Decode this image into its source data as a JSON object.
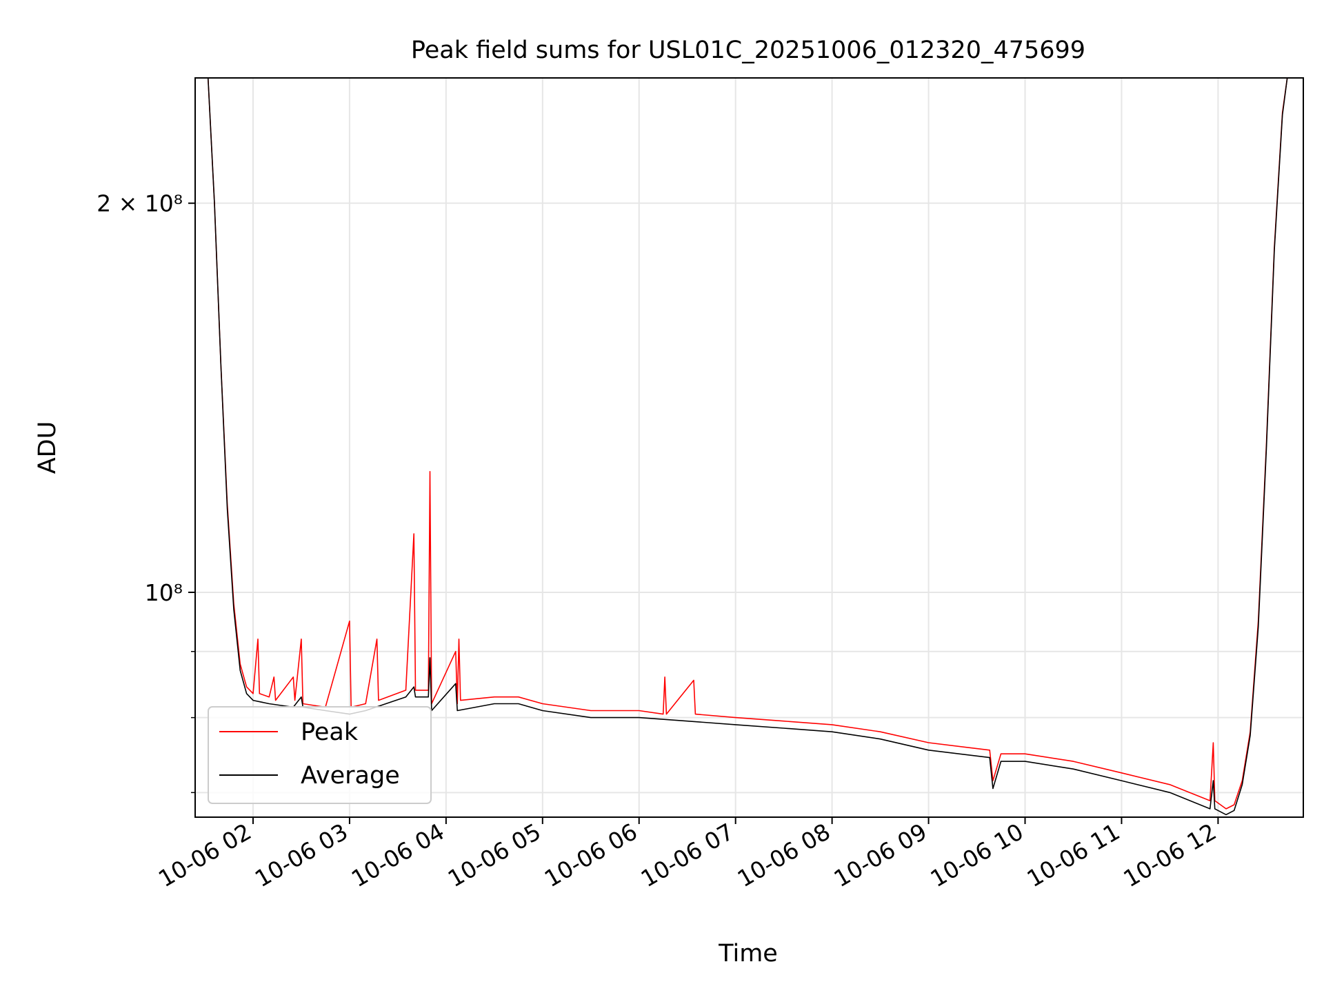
{
  "chart_data": {
    "type": "line",
    "title": "Peak field sums for USL01C_20251006_012320_475699",
    "xlabel": "Time",
    "ylabel": "ADU",
    "y_scale": "log",
    "ylim": [
      67000000,
      250000000
    ],
    "xlim": [
      "2025-10-06 01:24",
      "2025-10-06 12:53"
    ],
    "x_ticks": [
      "10-06 02",
      "10-06 03",
      "10-06 04",
      "10-06 05",
      "10-06 06",
      "10-06 07",
      "10-06 08",
      "10-06 09",
      "10-06 10",
      "10-06 11",
      "10-06 12"
    ],
    "x_tick_times": [
      "2025-10-06 02:00",
      "2025-10-06 03:00",
      "2025-10-06 04:00",
      "2025-10-06 05:00",
      "2025-10-06 06:00",
      "2025-10-06 07:00",
      "2025-10-06 08:00",
      "2025-10-06 09:00",
      "2025-10-06 10:00",
      "2025-10-06 11:00",
      "2025-10-06 12:00"
    ],
    "y_major_ticks": [
      {
        "value": 200000000,
        "label": "2 × 10⁸"
      },
      {
        "value": 100000000,
        "label": "10⁸"
      }
    ],
    "y_minor_ticks": [
      70000000,
      80000000,
      90000000
    ],
    "grid": true,
    "legend": "lower-left",
    "series": [
      {
        "name": "Peak",
        "color": "#ff0000",
        "points": [
          [
            "2025-10-06 01:32",
            250000000
          ],
          [
            "2025-10-06 01:36",
            200000000
          ],
          [
            "2025-10-06 01:40",
            150000000
          ],
          [
            "2025-10-06 01:44",
            117000000
          ],
          [
            "2025-10-06 01:48",
            98000000
          ],
          [
            "2025-10-06 01:52",
            88000000
          ],
          [
            "2025-10-06 01:56",
            84500000
          ],
          [
            "2025-10-06 02:00",
            83500000
          ],
          [
            "2025-10-06 02:03",
            92000000
          ],
          [
            "2025-10-06 02:04",
            83500000
          ],
          [
            "2025-10-06 02:10",
            83000000
          ],
          [
            "2025-10-06 02:13",
            86000000
          ],
          [
            "2025-10-06 02:14",
            82500000
          ],
          [
            "2025-10-06 02:25",
            86000000
          ],
          [
            "2025-10-06 02:26",
            82500000
          ],
          [
            "2025-10-06 02:30",
            92000000
          ],
          [
            "2025-10-06 02:31",
            82000000
          ],
          [
            "2025-10-06 02:45",
            81500000
          ],
          [
            "2025-10-06 03:00",
            95000000
          ],
          [
            "2025-10-06 03:01",
            81500000
          ],
          [
            "2025-10-06 03:10",
            82000000
          ],
          [
            "2025-10-06 03:17",
            92000000
          ],
          [
            "2025-10-06 03:18",
            82500000
          ],
          [
            "2025-10-06 03:35",
            84000000
          ],
          [
            "2025-10-06 03:40",
            111000000
          ],
          [
            "2025-10-06 03:41",
            84000000
          ],
          [
            "2025-10-06 03:49",
            84000000
          ],
          [
            "2025-10-06 03:50",
            124000000
          ],
          [
            "2025-10-06 03:51",
            82000000
          ],
          [
            "2025-10-06 04:06",
            90000000
          ],
          [
            "2025-10-06 04:07",
            82000000
          ],
          [
            "2025-10-06 04:08",
            92000000
          ],
          [
            "2025-10-06 04:09",
            82500000
          ],
          [
            "2025-10-06 04:30",
            83000000
          ],
          [
            "2025-10-06 04:45",
            83000000
          ],
          [
            "2025-10-06 05:00",
            82000000
          ],
          [
            "2025-10-06 05:30",
            81000000
          ],
          [
            "2025-10-06 06:00",
            81000000
          ],
          [
            "2025-10-06 06:15",
            80500000
          ],
          [
            "2025-10-06 06:16",
            86000000
          ],
          [
            "2025-10-06 06:17",
            80500000
          ],
          [
            "2025-10-06 06:34",
            85500000
          ],
          [
            "2025-10-06 06:35",
            80500000
          ],
          [
            "2025-10-06 07:00",
            80000000
          ],
          [
            "2025-10-06 07:30",
            79500000
          ],
          [
            "2025-10-06 08:00",
            79000000
          ],
          [
            "2025-10-06 08:30",
            78000000
          ],
          [
            "2025-10-06 09:00",
            76500000
          ],
          [
            "2025-10-06 09:38",
            75500000
          ],
          [
            "2025-10-06 09:40",
            71500000
          ],
          [
            "2025-10-06 09:45",
            75000000
          ],
          [
            "2025-10-06 10:00",
            75000000
          ],
          [
            "2025-10-06 10:30",
            74000000
          ],
          [
            "2025-10-06 11:00",
            72500000
          ],
          [
            "2025-10-06 11:30",
            71000000
          ],
          [
            "2025-10-06 11:55",
            69000000
          ],
          [
            "2025-10-06 11:57",
            76500000
          ],
          [
            "2025-10-06 11:58",
            69000000
          ],
          [
            "2025-10-06 12:05",
            68000000
          ],
          [
            "2025-10-06 12:10",
            68500000
          ],
          [
            "2025-10-06 12:15",
            71500000
          ],
          [
            "2025-10-06 12:20",
            78000000
          ],
          [
            "2025-10-06 12:25",
            95000000
          ],
          [
            "2025-10-06 12:30",
            130000000
          ],
          [
            "2025-10-06 12:35",
            185000000
          ],
          [
            "2025-10-06 12:40",
            235000000
          ],
          [
            "2025-10-06 12:43",
            250000000
          ]
        ]
      },
      {
        "name": "Average",
        "color": "#000000",
        "points": [
          [
            "2025-10-06 01:32",
            250000000
          ],
          [
            "2025-10-06 01:36",
            200000000
          ],
          [
            "2025-10-06 01:40",
            150000000
          ],
          [
            "2025-10-06 01:44",
            116000000
          ],
          [
            "2025-10-06 01:48",
            97000000
          ],
          [
            "2025-10-06 01:52",
            87000000
          ],
          [
            "2025-10-06 01:56",
            83500000
          ],
          [
            "2025-10-06 02:00",
            82500000
          ],
          [
            "2025-10-06 02:10",
            82000000
          ],
          [
            "2025-10-06 02:25",
            81500000
          ],
          [
            "2025-10-06 02:30",
            83000000
          ],
          [
            "2025-10-06 02:31",
            81500000
          ],
          [
            "2025-10-06 02:45",
            81000000
          ],
          [
            "2025-10-06 03:00",
            80500000
          ],
          [
            "2025-10-06 03:10",
            81000000
          ],
          [
            "2025-10-06 03:35",
            83000000
          ],
          [
            "2025-10-06 03:40",
            84500000
          ],
          [
            "2025-10-06 03:41",
            83000000
          ],
          [
            "2025-10-06 03:49",
            83000000
          ],
          [
            "2025-10-06 03:50",
            89000000
          ],
          [
            "2025-10-06 03:51",
            81000000
          ],
          [
            "2025-10-06 04:06",
            85000000
          ],
          [
            "2025-10-06 04:07",
            81000000
          ],
          [
            "2025-10-06 04:30",
            82000000
          ],
          [
            "2025-10-06 04:45",
            82000000
          ],
          [
            "2025-10-06 05:00",
            81000000
          ],
          [
            "2025-10-06 05:30",
            80000000
          ],
          [
            "2025-10-06 06:00",
            80000000
          ],
          [
            "2025-10-06 06:30",
            79500000
          ],
          [
            "2025-10-06 07:00",
            79000000
          ],
          [
            "2025-10-06 07:30",
            78500000
          ],
          [
            "2025-10-06 08:00",
            78000000
          ],
          [
            "2025-10-06 08:30",
            77000000
          ],
          [
            "2025-10-06 09:00",
            75500000
          ],
          [
            "2025-10-06 09:38",
            74500000
          ],
          [
            "2025-10-06 09:40",
            70500000
          ],
          [
            "2025-10-06 09:45",
            74000000
          ],
          [
            "2025-10-06 10:00",
            74000000
          ],
          [
            "2025-10-06 10:30",
            73000000
          ],
          [
            "2025-10-06 11:00",
            71500000
          ],
          [
            "2025-10-06 11:30",
            70000000
          ],
          [
            "2025-10-06 11:55",
            68000000
          ],
          [
            "2025-10-06 11:57",
            71500000
          ],
          [
            "2025-10-06 11:58",
            68000000
          ],
          [
            "2025-10-06 12:05",
            67300000
          ],
          [
            "2025-10-06 12:10",
            67800000
          ],
          [
            "2025-10-06 12:15",
            71000000
          ],
          [
            "2025-10-06 12:20",
            77500000
          ],
          [
            "2025-10-06 12:25",
            94000000
          ],
          [
            "2025-10-06 12:30",
            129000000
          ],
          [
            "2025-10-06 12:35",
            184000000
          ],
          [
            "2025-10-06 12:40",
            234000000
          ],
          [
            "2025-10-06 12:43",
            250000000
          ]
        ]
      }
    ]
  }
}
